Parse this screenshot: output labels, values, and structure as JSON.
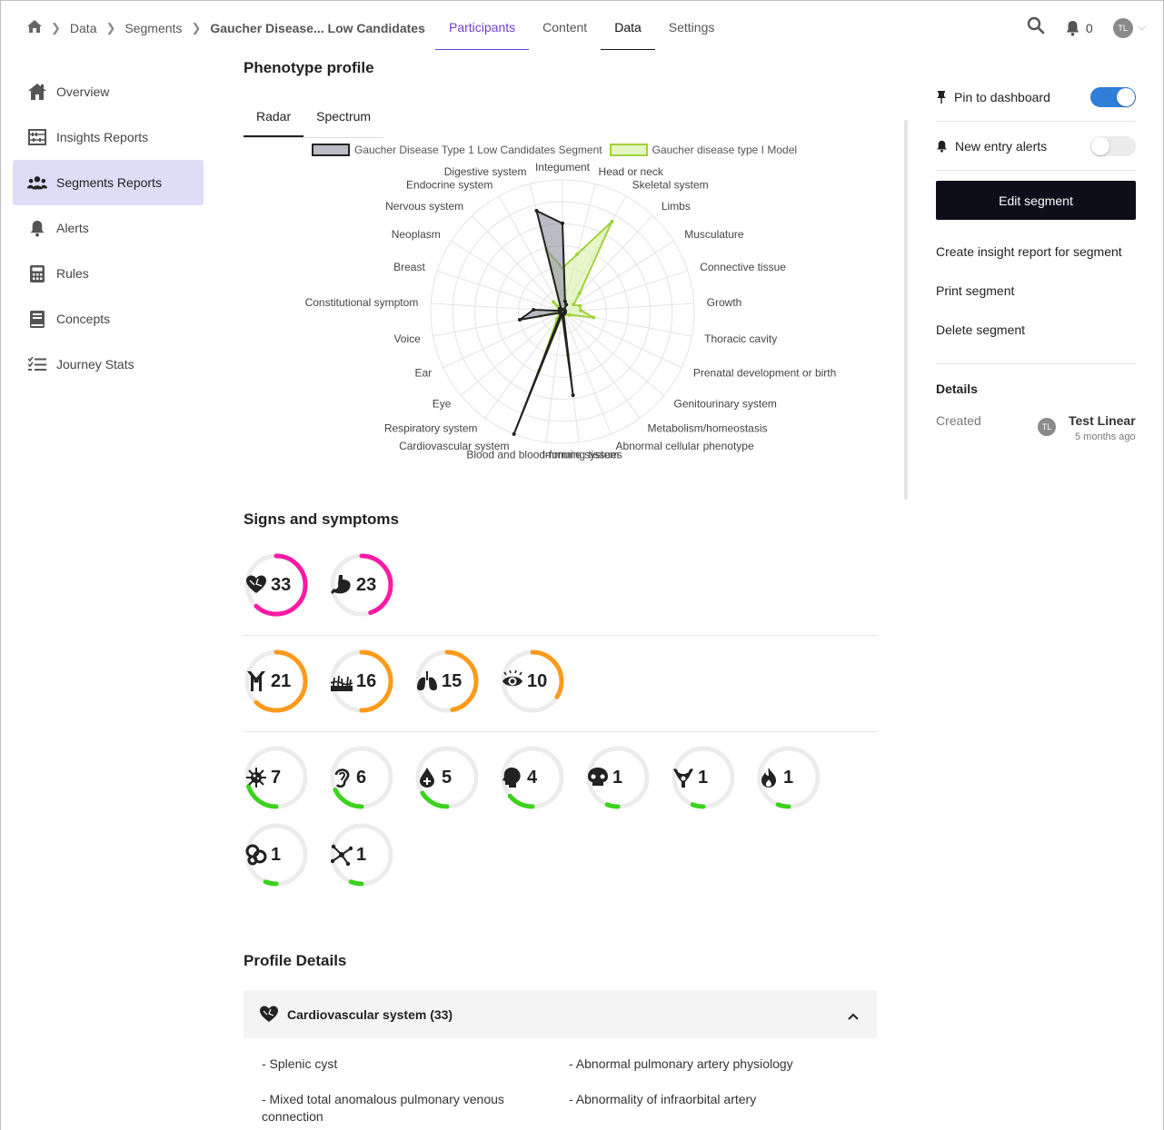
{
  "breadcrumb": [
    "Data",
    "Segments",
    "Gaucher Disease... Low Candidates"
  ],
  "top_tabs": [
    "Participants",
    "Content",
    "Data",
    "Settings"
  ],
  "notifications": "0",
  "user_initials": "TL",
  "sidebar": {
    "items": [
      {
        "label": "Overview"
      },
      {
        "label": "Insights Reports"
      },
      {
        "label": "Segments Reports"
      },
      {
        "label": "Alerts"
      },
      {
        "label": "Rules"
      },
      {
        "label": "Concepts"
      },
      {
        "label": "Journey Stats"
      }
    ]
  },
  "phenotype": {
    "title": "Phenotype profile",
    "tabs": [
      "Radar",
      "Spectrum"
    ]
  },
  "chart_data": {
    "type": "radar",
    "legend": [
      "Gaucher Disease Type 1 Low Candidates Segment",
      "Gaucher disease type I Model"
    ],
    "axes": [
      "Integument",
      "Head or neck",
      "Skeletal system",
      "Limbs",
      "Musculature",
      "Connective tissue",
      "Growth",
      "Thoracic cavity",
      "Prenatal development or birth",
      "Genitourinary system",
      "Metabolism/homeostasis",
      "Abnormal cellular phenotype",
      "Immune system",
      "Blood and blood-forming tissues",
      "Cardiovascular system",
      "Respiratory system",
      "Eye",
      "Ear",
      "Voice",
      "Constitutional symptom",
      "Breast",
      "Neoplasm",
      "Nervous system",
      "Endocrine system",
      "Digestive system"
    ],
    "series": [
      {
        "name": "Gaucher Disease Type 1 Low Candidates Segment",
        "color": "#222222",
        "fill": "#8e8e9e",
        "values": [
          0.67,
          0.08,
          0.06,
          0.02,
          0.02,
          0.02,
          0.02,
          0.02,
          0.02,
          0.02,
          0.02,
          0.02,
          0.64,
          0.02,
          1.0,
          0.02,
          0.02,
          0.02,
          0.33,
          0.22,
          0.02,
          0.02,
          0.03,
          0.02,
          0.79
        ]
      },
      {
        "name": "Gaucher disease type I Model",
        "color": "#9fd33a",
        "fill": "#d7f0a8",
        "values": [
          0.33,
          0.45,
          0.78,
          0.19,
          0.1,
          0.14,
          0.14,
          0.24,
          0.06,
          0.03,
          0.03,
          0.03,
          0.33,
          0.03,
          0.48,
          0.07,
          0.03,
          0.03,
          0.17,
          0.03,
          0.03,
          0.03,
          0.1,
          0.03,
          0.48
        ]
      }
    ]
  },
  "signs": {
    "title": "Signs and symptoms",
    "rows": [
      [
        {
          "icon": "heart-icon",
          "value": "33",
          "frac": 0.62,
          "color": "#ff1aa3"
        },
        {
          "icon": "stomach-icon",
          "value": "23",
          "frac": 0.45,
          "color": "#ff1aa3"
        }
      ],
      [
        {
          "icon": "antibody-icon",
          "value": "21",
          "frac": 0.62,
          "color": "#ff9a1a"
        },
        {
          "icon": "skin-icon",
          "value": "16",
          "frac": 0.5,
          "color": "#ff9a1a"
        },
        {
          "icon": "lungs-icon",
          "value": "15",
          "frac": 0.47,
          "color": "#ff9a1a"
        },
        {
          "icon": "eye-icon",
          "value": "10",
          "frac": 0.34,
          "color": "#ff9a1a"
        }
      ],
      [
        {
          "icon": "virus-icon",
          "value": "7",
          "frac": 0.2,
          "color": "#3cd21e"
        },
        {
          "icon": "ear-icon",
          "value": "6",
          "frac": 0.18,
          "color": "#3cd21e"
        },
        {
          "icon": "blood-drop-icon",
          "value": "5",
          "frac": 0.16,
          "color": "#3cd21e"
        },
        {
          "icon": "head-icon",
          "value": "4",
          "frac": 0.14,
          "color": "#3cd21e"
        },
        {
          "icon": "skull-icon",
          "value": "1",
          "frac": 0.06,
          "color": "#3cd21e"
        },
        {
          "icon": "uterus-icon",
          "value": "1",
          "frac": 0.06,
          "color": "#3cd21e"
        },
        {
          "icon": "flame-icon",
          "value": "1",
          "frac": 0.06,
          "color": "#3cd21e"
        }
      ],
      [
        {
          "icon": "intestine-icon",
          "value": "1",
          "frac": 0.06,
          "color": "#3cd21e"
        },
        {
          "icon": "molecule-icon",
          "value": "1",
          "frac": 0.06,
          "color": "#3cd21e"
        }
      ]
    ]
  },
  "profile": {
    "title": "Profile Details",
    "accordion_title": "Cardiovascular system (33)",
    "items": [
      "- Splenic cyst",
      "- Abnormal pulmonary artery physiology",
      "- Mixed total anomalous pulmonary venous connection",
      "- Abnormality of infraorbital artery"
    ]
  },
  "right": {
    "pin_label": "Pin to dashboard",
    "alerts_label": "New entry alerts",
    "edit_label": "Edit segment",
    "create_report": "Create insight report for segment",
    "print": "Print segment",
    "delete": "Delete segment",
    "details_title": "Details",
    "created_label": "Created",
    "creator_initials": "TL",
    "creator_name": "Test Linear",
    "created_time": "5 months ago"
  }
}
